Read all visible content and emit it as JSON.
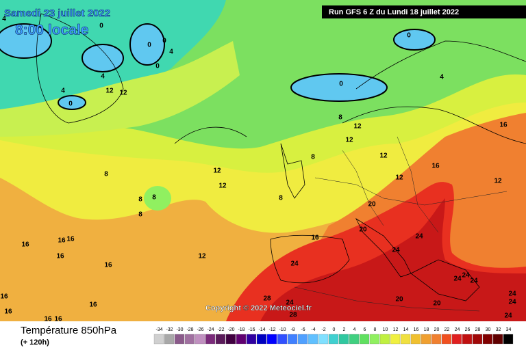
{
  "header": {
    "valid_date": "Samedi 23 juillet 2022",
    "local_time": "8:00 locale",
    "run": "Run GFS 6 Z du Lundi 18 juillet 2022"
  },
  "map": {
    "contour_labels": [
      4,
      0,
      0,
      0,
      4,
      0,
      4,
      4,
      0,
      12,
      12,
      0,
      0,
      4,
      8,
      12,
      12,
      16,
      8,
      8,
      8,
      8,
      12,
      12,
      8,
      8,
      12,
      12,
      16,
      12,
      20,
      20,
      16,
      24,
      24,
      16,
      16,
      16,
      16,
      12,
      16,
      24,
      24,
      24,
      24,
      24,
      24,
      20,
      20,
      28,
      24,
      28,
      16,
      16,
      16,
      16,
      16,
      24
    ]
  },
  "copyright": "Copyright © 2022 Meteociel.fr",
  "legend": {
    "title": "Température 850hPa",
    "lead_time": "(+ 120h)",
    "scale": {
      "values": [
        -34,
        -32,
        -30,
        -28,
        -26,
        -24,
        -22,
        -20,
        -18,
        -16,
        -14,
        -12,
        -10,
        -8,
        -6,
        -4,
        -2,
        0,
        2,
        4,
        6,
        8,
        10,
        12,
        14,
        16,
        18,
        20,
        22,
        24,
        26,
        28,
        30,
        32,
        34
      ],
      "colors": [
        "#d0d0d0",
        "#a8a8a8",
        "#8a5a8a",
        "#a070a0",
        "#c090c0",
        "#7a2a7a",
        "#5a1a5a",
        "#400040",
        "#600070",
        "#3000a0",
        "#0000c0",
        "#0000ff",
        "#3050ff",
        "#4080ff",
        "#50a0ff",
        "#60c0ff",
        "#80e0ff",
        "#40d0d0",
        "#30c8a0",
        "#40d080",
        "#60e060",
        "#90f060",
        "#c0f040",
        "#f0f040",
        "#f0e040",
        "#f0c030",
        "#f0a030",
        "#f08030",
        "#f05020",
        "#e02020",
        "#c01010",
        "#a00808",
        "#800000",
        "#600000",
        "#000000"
      ]
    }
  }
}
